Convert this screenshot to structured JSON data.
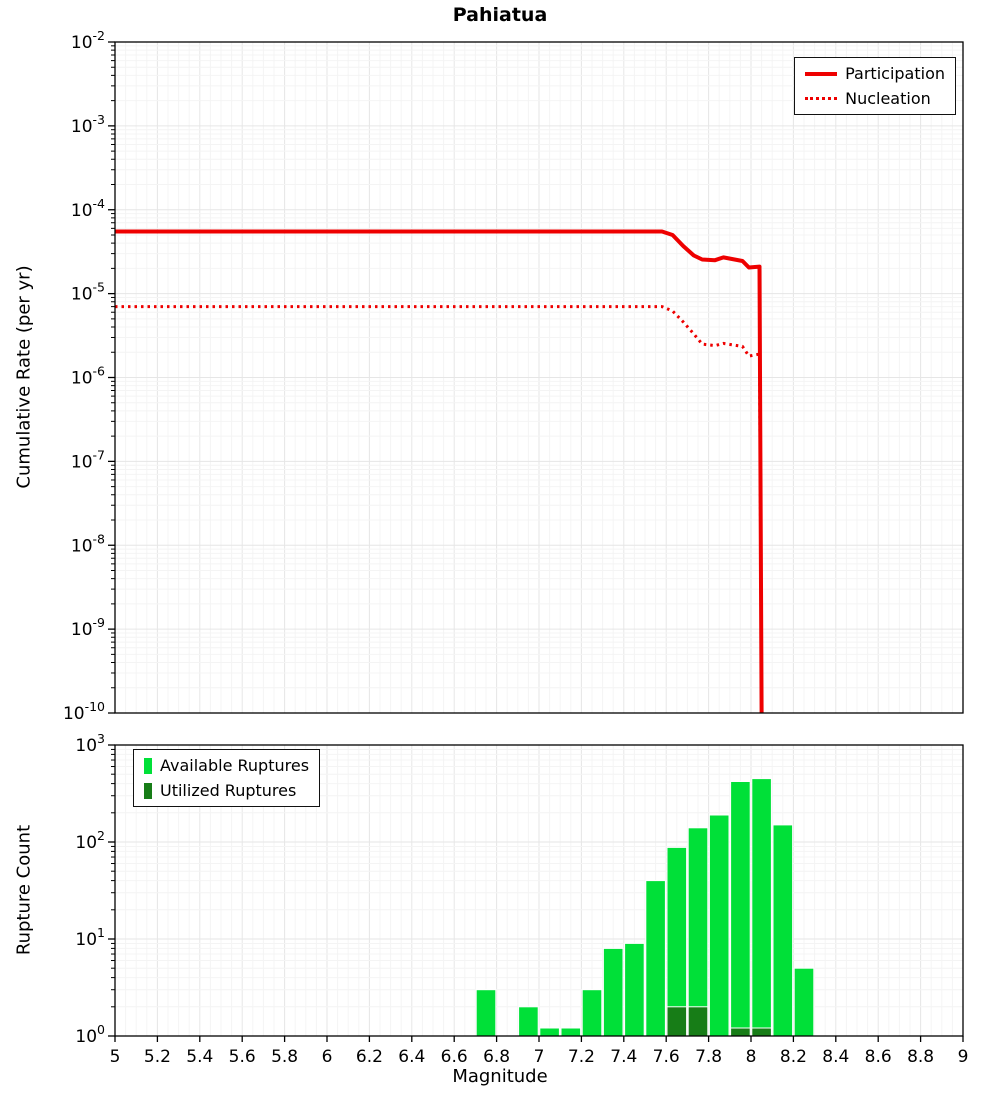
{
  "title": "Pahiatua",
  "colors": {
    "grid_minor": "#f4f4f4",
    "grid_major": "#e6e6e6",
    "axis": "#000000"
  },
  "chart_data": [
    {
      "type": "line",
      "panel": "top",
      "ylabel": "Cumulative Rate (per yr)",
      "x_range": [
        5,
        9
      ],
      "y_exp_range": [
        -10,
        -2
      ],
      "y_tick_exponents": [
        -2,
        -3,
        -4,
        -5,
        -6,
        -7,
        -8,
        -9,
        -10
      ],
      "legend_position": "top-right",
      "series": [
        {
          "name": "Participation",
          "style": "solid",
          "color": "#ee0000",
          "points": [
            [
              5.0,
              5.5e-05
            ],
            [
              7.58,
              5.5e-05
            ],
            [
              7.63,
              5e-05
            ],
            [
              7.68,
              3.7e-05
            ],
            [
              7.73,
              2.85e-05
            ],
            [
              7.77,
              2.55e-05
            ],
            [
              7.83,
              2.5e-05
            ],
            [
              7.87,
              2.7e-05
            ],
            [
              7.96,
              2.45e-05
            ],
            [
              7.99,
              2.05e-05
            ],
            [
              8.04,
              2.1e-05
            ],
            [
              8.05,
              1e-10
            ]
          ]
        },
        {
          "name": "Nucleation",
          "style": "dotted",
          "color": "#ee0000",
          "points": [
            [
              5.0,
              7e-06
            ],
            [
              7.58,
              7e-06
            ],
            [
              7.63,
              6.2e-06
            ],
            [
              7.68,
              4.6e-06
            ],
            [
              7.73,
              3.3e-06
            ],
            [
              7.77,
              2.5e-06
            ],
            [
              7.83,
              2.4e-06
            ],
            [
              7.87,
              2.55e-06
            ],
            [
              7.96,
              2.35e-06
            ],
            [
              7.99,
              1.8e-06
            ],
            [
              8.04,
              1.9e-06
            ],
            [
              8.05,
              1e-10
            ]
          ]
        }
      ]
    },
    {
      "type": "bar",
      "panel": "bottom",
      "ylabel": "Rupture Count",
      "xlabel": "Magnitude",
      "x_range": [
        5,
        9
      ],
      "y_exp_range": [
        0,
        3
      ],
      "y_tick_exponents": [
        3,
        2,
        1,
        0
      ],
      "x_tick_labels": [
        "5",
        "5.2",
        "5.4",
        "5.6",
        "5.8",
        "6",
        "6.2",
        "6.4",
        "6.6",
        "6.8",
        "7",
        "7.2",
        "7.4",
        "7.6",
        "7.8",
        "8",
        "8.2",
        "8.4",
        "8.6",
        "8.8",
        "9"
      ],
      "bin_width": 0.1,
      "legend_position": "top-left",
      "series": [
        {
          "name": "Available Ruptures",
          "color": "#00e038",
          "bars": [
            [
              6.75,
              3
            ],
            [
              6.95,
              2
            ],
            [
              7.05,
              1
            ],
            [
              7.15,
              1
            ],
            [
              7.25,
              3
            ],
            [
              7.35,
              8
            ],
            [
              7.45,
              9
            ],
            [
              7.55,
              40
            ],
            [
              7.65,
              88
            ],
            [
              7.75,
              140
            ],
            [
              7.85,
              190
            ],
            [
              7.95,
              420
            ],
            [
              8.05,
              450
            ],
            [
              8.15,
              150
            ],
            [
              8.25,
              5
            ]
          ]
        },
        {
          "name": "Utilized Ruptures",
          "color": "#177d17",
          "bars": [
            [
              7.65,
              2
            ],
            [
              7.75,
              2
            ],
            [
              7.95,
              1
            ],
            [
              8.05,
              1
            ]
          ]
        }
      ]
    }
  ]
}
